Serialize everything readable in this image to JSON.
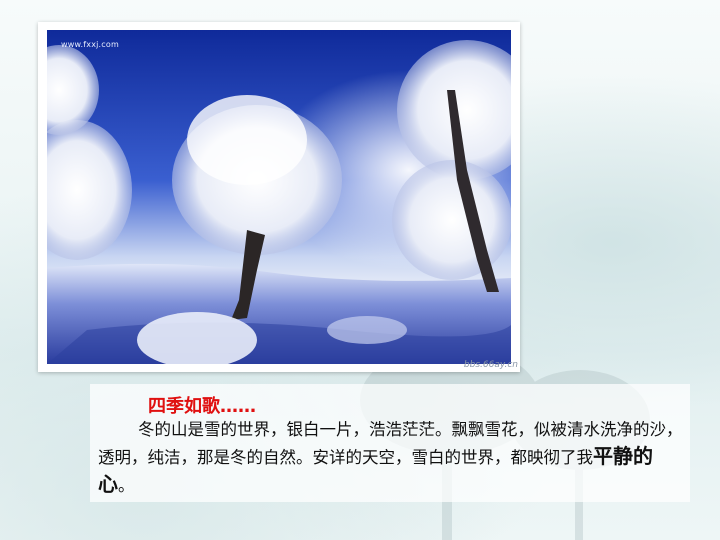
{
  "photo": {
    "watermark_top": "www.fxxj.com",
    "watermark_bottom": "bbs.66ay.cn"
  },
  "text_block": {
    "heading": "四季如歌……",
    "paragraph_main": "冬的山是雪的世界，银白一片，浩浩茫茫。飘飘雪花，似被清水洗净的沙，透明，纯洁，那是冬的自然。安详的天空，雪白的世界，都映彻了我",
    "paragraph_emphasis": "平静的心",
    "paragraph_end": "。"
  },
  "colors": {
    "heading": "#e01010",
    "text": "#111111",
    "sky": "#1a3aa8"
  }
}
